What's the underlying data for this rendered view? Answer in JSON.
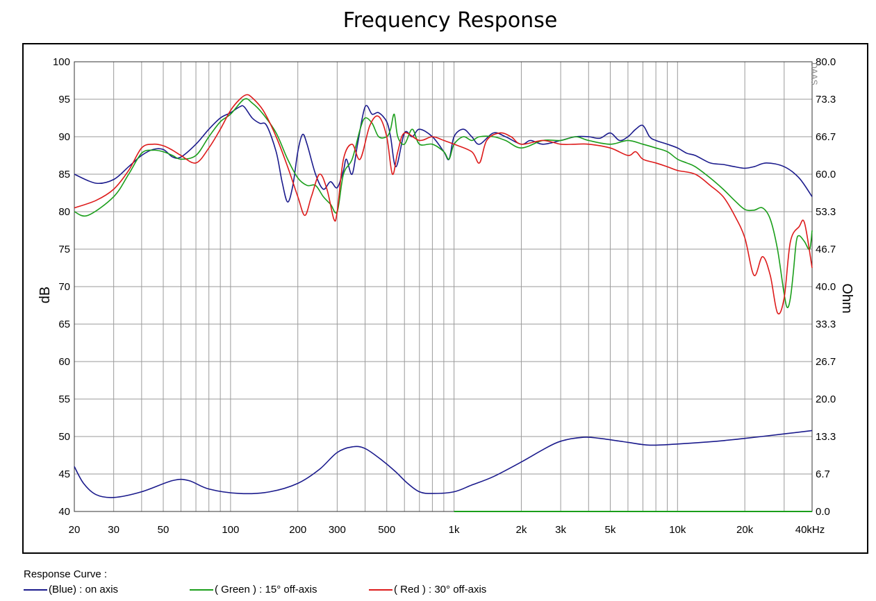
{
  "chart_data": {
    "type": "line",
    "title": "Frequency  Response",
    "xlabel": "",
    "ylabel": "dB",
    "ylabel_right": "Ohm",
    "watermark": "DAAS",
    "x_scale": "log",
    "xlim": [
      20,
      40000
    ],
    "ylim": [
      40,
      100
    ],
    "ylim_right": [
      0,
      80
    ],
    "x_ticks": [
      {
        "value": 20,
        "label": "20"
      },
      {
        "value": 30,
        "label": "30"
      },
      {
        "value": 50,
        "label": "50"
      },
      {
        "value": 100,
        "label": "100"
      },
      {
        "value": 200,
        "label": "200"
      },
      {
        "value": 300,
        "label": "300"
      },
      {
        "value": 500,
        "label": "500"
      },
      {
        "value": 1000,
        "label": "1k"
      },
      {
        "value": 2000,
        "label": "2k"
      },
      {
        "value": 3000,
        "label": "3k"
      },
      {
        "value": 5000,
        "label": "5k"
      },
      {
        "value": 10000,
        "label": "10k"
      },
      {
        "value": 20000,
        "label": "20k"
      },
      {
        "value": 40000,
        "label": "40kHz"
      }
    ],
    "y_ticks": [
      "100",
      "95",
      "90",
      "85",
      "80",
      "75",
      "70",
      "65",
      "60",
      "55",
      "50",
      "45",
      "40"
    ],
    "y_ticks_right": [
      "80.0",
      "73.3",
      "66.7",
      "60.0",
      "53.3",
      "46.7",
      "40.0",
      "33.3",
      "26.7",
      "20.0",
      "13.3",
      "6.7",
      "0.0"
    ],
    "legend_title": "Response Curve :",
    "series": [
      {
        "name": "(Blue)  : on axis",
        "color": "#1a1a8c",
        "points": [
          [
            20,
            85
          ],
          [
            25,
            83.8
          ],
          [
            30,
            84.3
          ],
          [
            35,
            86
          ],
          [
            40,
            87.5
          ],
          [
            45,
            88.3
          ],
          [
            50,
            88.3
          ],
          [
            55,
            87.3
          ],
          [
            60,
            87.3
          ],
          [
            70,
            89
          ],
          [
            80,
            91
          ],
          [
            90,
            92.5
          ],
          [
            100,
            93.2
          ],
          [
            110,
            94
          ],
          [
            115,
            94
          ],
          [
            125,
            92.5
          ],
          [
            135,
            91.8
          ],
          [
            145,
            91.5
          ],
          [
            160,
            88
          ],
          [
            170,
            84
          ],
          [
            180,
            81.3
          ],
          [
            190,
            83.5
          ],
          [
            200,
            88
          ],
          [
            210,
            90.3
          ],
          [
            220,
            89
          ],
          [
            240,
            85
          ],
          [
            260,
            83
          ],
          [
            280,
            84
          ],
          [
            300,
            83.2
          ],
          [
            320,
            85.5
          ],
          [
            330,
            87
          ],
          [
            350,
            85
          ],
          [
            370,
            89
          ],
          [
            400,
            94
          ],
          [
            430,
            93
          ],
          [
            460,
            93.2
          ],
          [
            500,
            92
          ],
          [
            520,
            90
          ],
          [
            550,
            86
          ],
          [
            600,
            90.5
          ],
          [
            650,
            90
          ],
          [
            700,
            91
          ],
          [
            800,
            90
          ],
          [
            900,
            88
          ],
          [
            950,
            87
          ],
          [
            1000,
            90
          ],
          [
            1100,
            91
          ],
          [
            1200,
            90
          ],
          [
            1300,
            89
          ],
          [
            1500,
            90.5
          ],
          [
            1700,
            90
          ],
          [
            2000,
            89
          ],
          [
            2200,
            89.5
          ],
          [
            2500,
            89
          ],
          [
            3000,
            89.5
          ],
          [
            3500,
            90
          ],
          [
            4000,
            90
          ],
          [
            4500,
            89.8
          ],
          [
            5000,
            90.5
          ],
          [
            5500,
            89.5
          ],
          [
            6000,
            90
          ],
          [
            6500,
            91
          ],
          [
            7000,
            91.5
          ],
          [
            7500,
            90
          ],
          [
            8000,
            89.5
          ],
          [
            9000,
            89
          ],
          [
            10000,
            88.5
          ],
          [
            11000,
            87.8
          ],
          [
            12000,
            87.5
          ],
          [
            14000,
            86.5
          ],
          [
            16000,
            86.3
          ],
          [
            18000,
            86
          ],
          [
            20000,
            85.8
          ],
          [
            22000,
            86
          ],
          [
            25000,
            86.5
          ],
          [
            30000,
            86
          ],
          [
            35000,
            84.5
          ],
          [
            40000,
            82
          ]
        ]
      },
      {
        "name": "( Green ) : 15° off-axis",
        "color": "#1a9e1a",
        "points": [
          [
            20,
            80
          ],
          [
            23,
            79.5
          ],
          [
            30,
            82
          ],
          [
            35,
            85
          ],
          [
            40,
            87.8
          ],
          [
            45,
            88.2
          ],
          [
            50,
            88
          ],
          [
            55,
            87.5
          ],
          [
            60,
            87
          ],
          [
            70,
            87.5
          ],
          [
            80,
            90
          ],
          [
            90,
            92
          ],
          [
            100,
            93
          ],
          [
            115,
            95
          ],
          [
            125,
            94.5
          ],
          [
            140,
            93
          ],
          [
            160,
            90.5
          ],
          [
            180,
            87
          ],
          [
            200,
            84.5
          ],
          [
            220,
            83.5
          ],
          [
            240,
            83.5
          ],
          [
            260,
            82
          ],
          [
            280,
            81
          ],
          [
            300,
            80
          ],
          [
            320,
            85
          ],
          [
            350,
            87
          ],
          [
            380,
            91
          ],
          [
            400,
            92.5
          ],
          [
            430,
            91.8
          ],
          [
            460,
            90
          ],
          [
            500,
            90
          ],
          [
            520,
            91
          ],
          [
            540,
            93
          ],
          [
            560,
            90
          ],
          [
            600,
            89
          ],
          [
            650,
            91
          ],
          [
            700,
            89
          ],
          [
            800,
            89
          ],
          [
            900,
            88
          ],
          [
            950,
            87
          ],
          [
            1000,
            89
          ],
          [
            1100,
            90
          ],
          [
            1200,
            89.5
          ],
          [
            1300,
            90
          ],
          [
            1500,
            90
          ],
          [
            1700,
            89.5
          ],
          [
            2000,
            88.5
          ],
          [
            2500,
            89.5
          ],
          [
            3000,
            89.5
          ],
          [
            3500,
            90
          ],
          [
            4000,
            89.5
          ],
          [
            5000,
            89
          ],
          [
            6000,
            89.5
          ],
          [
            7000,
            89
          ],
          [
            8000,
            88.5
          ],
          [
            9000,
            88
          ],
          [
            10000,
            87
          ],
          [
            11000,
            86.5
          ],
          [
            12000,
            86
          ],
          [
            14000,
            84.5
          ],
          [
            16000,
            83
          ],
          [
            18000,
            81.5
          ],
          [
            20000,
            80.3
          ],
          [
            22000,
            80.2
          ],
          [
            24000,
            80.5
          ],
          [
            26000,
            79
          ],
          [
            28000,
            75
          ],
          [
            30000,
            69
          ],
          [
            31000,
            67.2
          ],
          [
            32000,
            68.5
          ],
          [
            33000,
            72
          ],
          [
            34000,
            76
          ],
          [
            35000,
            76.8
          ],
          [
            37000,
            76
          ],
          [
            39000,
            75
          ],
          [
            40000,
            77.5
          ]
        ]
      },
      {
        "name": "( Red ) : 30° off-axis",
        "color": "#dd1a1a",
        "points": [
          [
            20,
            80.5
          ],
          [
            25,
            81.5
          ],
          [
            30,
            83
          ],
          [
            35,
            85.5
          ],
          [
            40,
            88.5
          ],
          [
            45,
            89
          ],
          [
            50,
            88.8
          ],
          [
            55,
            88.2
          ],
          [
            60,
            87.5
          ],
          [
            70,
            86.5
          ],
          [
            80,
            88.5
          ],
          [
            90,
            91
          ],
          [
            100,
            93.5
          ],
          [
            110,
            95
          ],
          [
            118,
            95.6
          ],
          [
            125,
            95.2
          ],
          [
            140,
            93.5
          ],
          [
            160,
            90
          ],
          [
            180,
            86
          ],
          [
            200,
            82
          ],
          [
            215,
            79.5
          ],
          [
            230,
            82
          ],
          [
            250,
            85
          ],
          [
            270,
            83
          ],
          [
            290,
            79
          ],
          [
            300,
            80
          ],
          [
            320,
            87
          ],
          [
            350,
            89
          ],
          [
            380,
            87
          ],
          [
            420,
            91.5
          ],
          [
            460,
            92.7
          ],
          [
            500,
            90
          ],
          [
            530,
            85
          ],
          [
            560,
            88
          ],
          [
            600,
            90.5
          ],
          [
            700,
            89.5
          ],
          [
            800,
            90
          ],
          [
            900,
            89.5
          ],
          [
            1000,
            89
          ],
          [
            1200,
            88
          ],
          [
            1300,
            86.5
          ],
          [
            1400,
            89.5
          ],
          [
            1600,
            90.5
          ],
          [
            1800,
            90
          ],
          [
            2000,
            89
          ],
          [
            2500,
            89.5
          ],
          [
            3000,
            89
          ],
          [
            3500,
            89
          ],
          [
            4000,
            89
          ],
          [
            5000,
            88.5
          ],
          [
            6000,
            87.5
          ],
          [
            6500,
            88
          ],
          [
            7000,
            87
          ],
          [
            8000,
            86.5
          ],
          [
            9000,
            86
          ],
          [
            10000,
            85.5
          ],
          [
            12000,
            85
          ],
          [
            14000,
            83.5
          ],
          [
            16000,
            82
          ],
          [
            18000,
            79.5
          ],
          [
            20000,
            76.5
          ],
          [
            22000,
            71.5
          ],
          [
            24000,
            74
          ],
          [
            26000,
            71.5
          ],
          [
            28000,
            66.5
          ],
          [
            30000,
            68.5
          ],
          [
            32000,
            76
          ],
          [
            35000,
            78
          ],
          [
            37000,
            78.5
          ],
          [
            40000,
            72.5
          ]
        ]
      },
      {
        "name": "Impedance",
        "color": "#1a1a8c",
        "axis": "right",
        "points": [
          [
            20,
            8
          ],
          [
            22,
            5
          ],
          [
            25,
            3
          ],
          [
            30,
            2.5
          ],
          [
            40,
            3.5
          ],
          [
            55,
            5.5
          ],
          [
            65,
            5.5
          ],
          [
            80,
            4
          ],
          [
            110,
            3.2
          ],
          [
            150,
            3.5
          ],
          [
            200,
            5
          ],
          [
            250,
            7.5
          ],
          [
            300,
            10.5
          ],
          [
            350,
            11.5
          ],
          [
            400,
            11.2
          ],
          [
            480,
            9
          ],
          [
            550,
            7
          ],
          [
            620,
            5
          ],
          [
            700,
            3.5
          ],
          [
            800,
            3.2
          ],
          [
            1000,
            3.5
          ],
          [
            1200,
            4.7
          ],
          [
            1500,
            6.2
          ],
          [
            2000,
            8.8
          ],
          [
            2500,
            11
          ],
          [
            3000,
            12.5
          ],
          [
            3800,
            13.2
          ],
          [
            4500,
            13
          ],
          [
            6000,
            12.3
          ],
          [
            7500,
            11.8
          ],
          [
            10000,
            12
          ],
          [
            15000,
            12.5
          ],
          [
            20000,
            13
          ],
          [
            30000,
            13.8
          ],
          [
            40000,
            14.4
          ]
        ]
      },
      {
        "name": "Baseline",
        "color": "#1a9e1a",
        "points": [
          [
            1000,
            40
          ],
          [
            40000,
            40
          ]
        ]
      }
    ]
  }
}
